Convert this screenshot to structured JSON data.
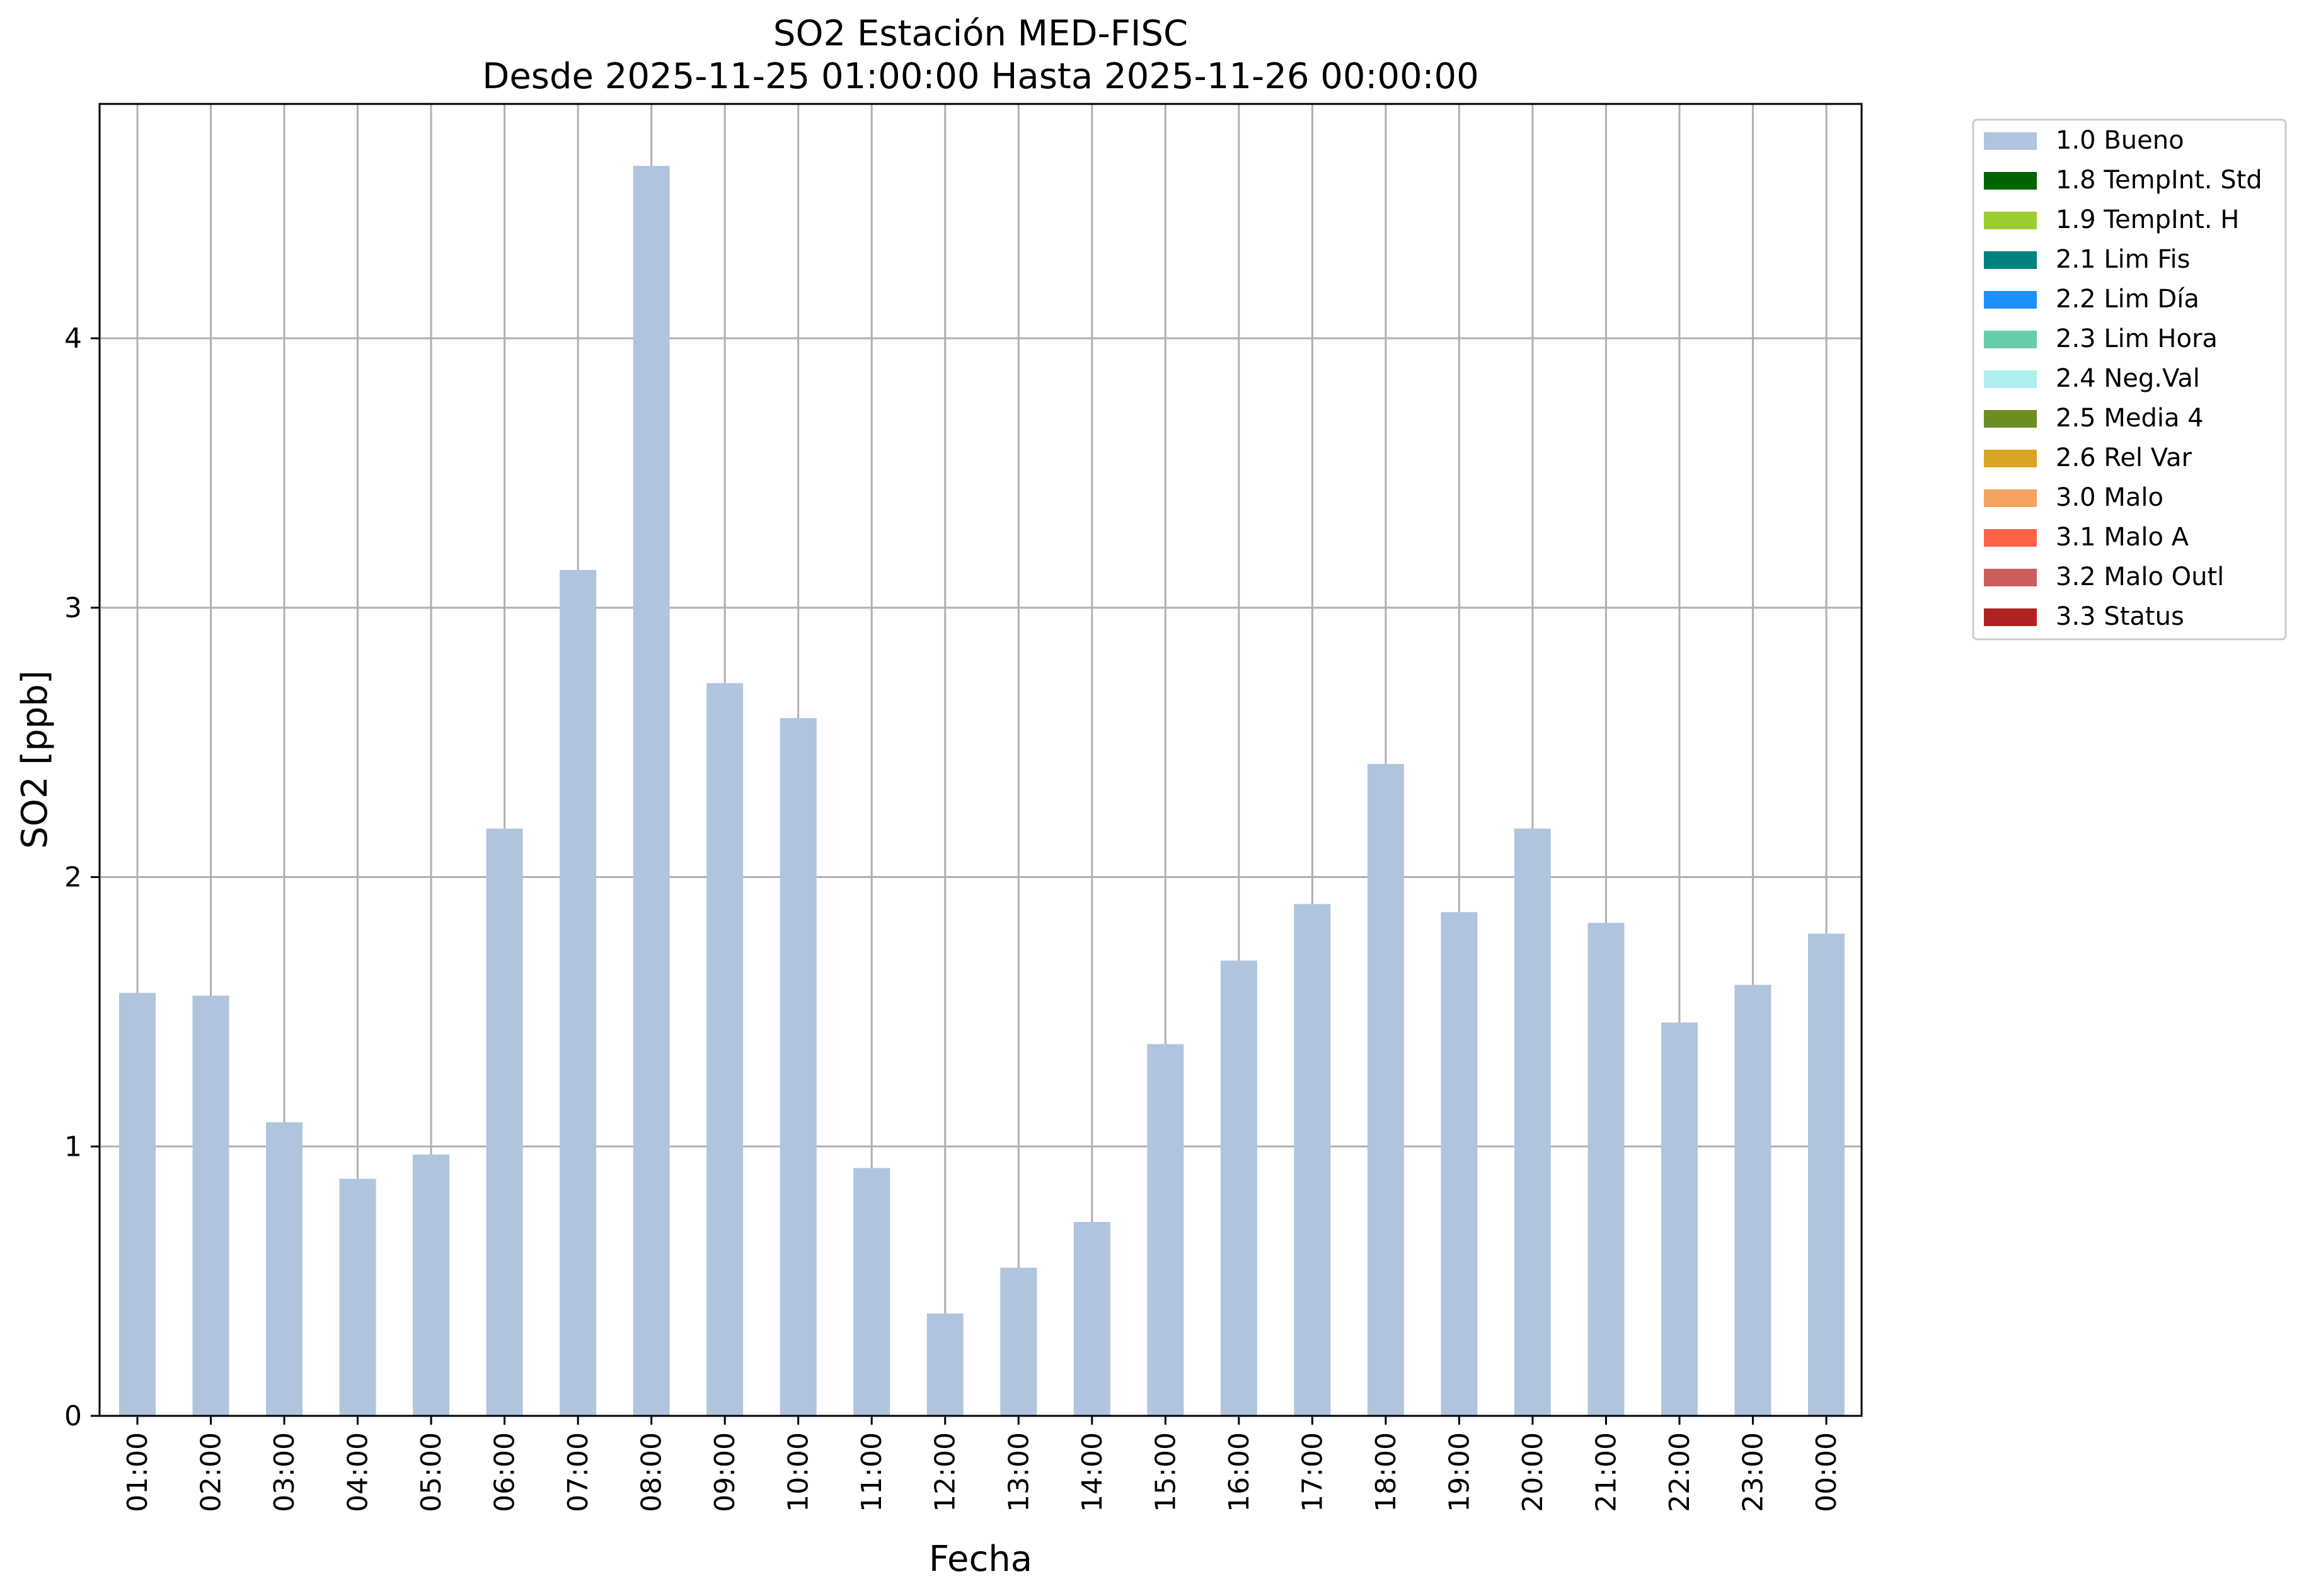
{
  "chart_data": {
    "type": "bar",
    "title_line1": "SO2 Estación MED-FISC",
    "title_line2": "Desde 2025-11-25 01:00:00 Hasta 2025-11-26 00:00:00",
    "xlabel": "Fecha",
    "ylabel": "SO2 [ppb]",
    "ylim": [
      0,
      4.87
    ],
    "yticks": [
      0,
      1,
      2,
      3,
      4
    ],
    "grid": true,
    "legend_placement": "outside-right-top",
    "categories": [
      "01:00",
      "02:00",
      "03:00",
      "04:00",
      "05:00",
      "06:00",
      "07:00",
      "08:00",
      "09:00",
      "10:00",
      "11:00",
      "12:00",
      "13:00",
      "14:00",
      "15:00",
      "16:00",
      "17:00",
      "18:00",
      "19:00",
      "20:00",
      "21:00",
      "22:00",
      "23:00",
      "00:00"
    ],
    "series": [
      {
        "name": "1.0 Bueno",
        "color": "#b0c4de",
        "values": [
          1.57,
          1.56,
          1.09,
          0.88,
          0.97,
          2.18,
          3.14,
          4.64,
          2.72,
          2.59,
          0.92,
          0.38,
          0.55,
          0.72,
          1.38,
          1.69,
          1.9,
          2.42,
          1.87,
          2.18,
          1.83,
          1.46,
          1.6,
          1.79
        ]
      }
    ],
    "legend": [
      {
        "label": "1.0 Bueno",
        "color": "#b0c4de"
      },
      {
        "label": "1.8 TempInt. Std",
        "color": "#006400"
      },
      {
        "label": "1.9 TempInt. H",
        "color": "#9acd32"
      },
      {
        "label": "2.1 Lim Fis",
        "color": "#008080"
      },
      {
        "label": "2.2 Lim Día",
        "color": "#1e90ff"
      },
      {
        "label": "2.3 Lim Hora",
        "color": "#66cdaa"
      },
      {
        "label": "2.4 Neg.Val",
        "color": "#afeeee"
      },
      {
        "label": "2.5 Media 4",
        "color": "#6b8e23"
      },
      {
        "label": "2.6 Rel Var",
        "color": "#daa520"
      },
      {
        "label": "3.0 Malo",
        "color": "#f4a460"
      },
      {
        "label": "3.1 Malo A",
        "color": "#ff6347"
      },
      {
        "label": "3.2 Malo Outl",
        "color": "#cd5c5c"
      },
      {
        "label": "3.3 Status",
        "color": "#b22222"
      }
    ]
  }
}
